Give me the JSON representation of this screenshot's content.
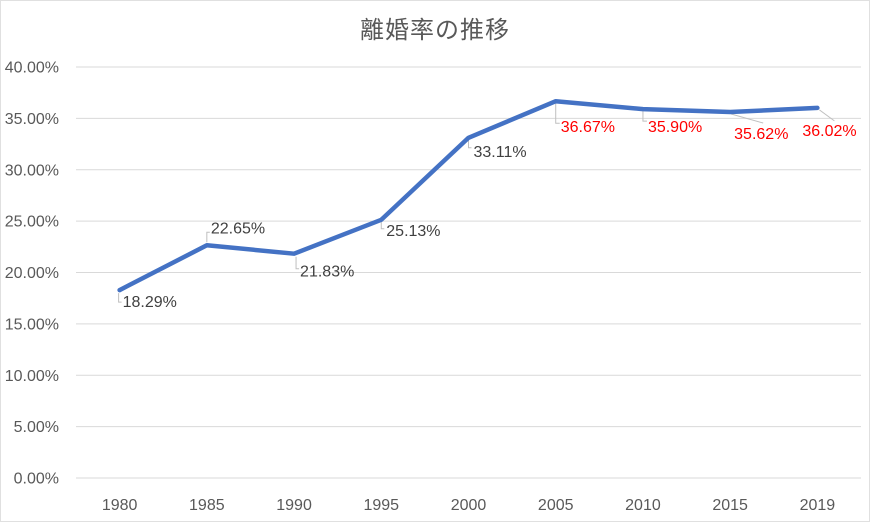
{
  "chart_data": {
    "type": "line",
    "title": "離婚率の推移",
    "categories": [
      "1980",
      "1985",
      "1990",
      "1995",
      "2000",
      "2005",
      "2010",
      "2015",
      "2019"
    ],
    "values": [
      18.29,
      22.65,
      21.83,
      25.13,
      33.11,
      36.67,
      35.9,
      35.62,
      36.02
    ],
    "data_labels": [
      "18.29%",
      "22.65%",
      "21.83%",
      "25.13%",
      "33.11%",
      "36.67%",
      "35.90%",
      "35.62%",
      "36.02%"
    ],
    "label_colors": [
      "black",
      "black",
      "black",
      "black",
      "black",
      "red",
      "red",
      "red",
      "red"
    ],
    "y_ticks": [
      "0.00%",
      "5.00%",
      "10.00%",
      "15.00%",
      "20.00%",
      "25.00%",
      "30.00%",
      "35.00%",
      "40.00%"
    ],
    "y_tick_values": [
      0,
      5,
      10,
      15,
      20,
      25,
      30,
      35,
      40
    ],
    "ylim": [
      0,
      40
    ],
    "xlabel": "",
    "ylabel": "",
    "grid": true,
    "legend": "none",
    "colors": {
      "line": "#4472C4",
      "label_black": "#404040",
      "label_red": "#FF0000",
      "gridline": "#D9D9D9",
      "axis_text": "#595959",
      "title_text": "#595959",
      "leader_line": "#BFBFBF",
      "background": "#FFFFFF"
    }
  }
}
